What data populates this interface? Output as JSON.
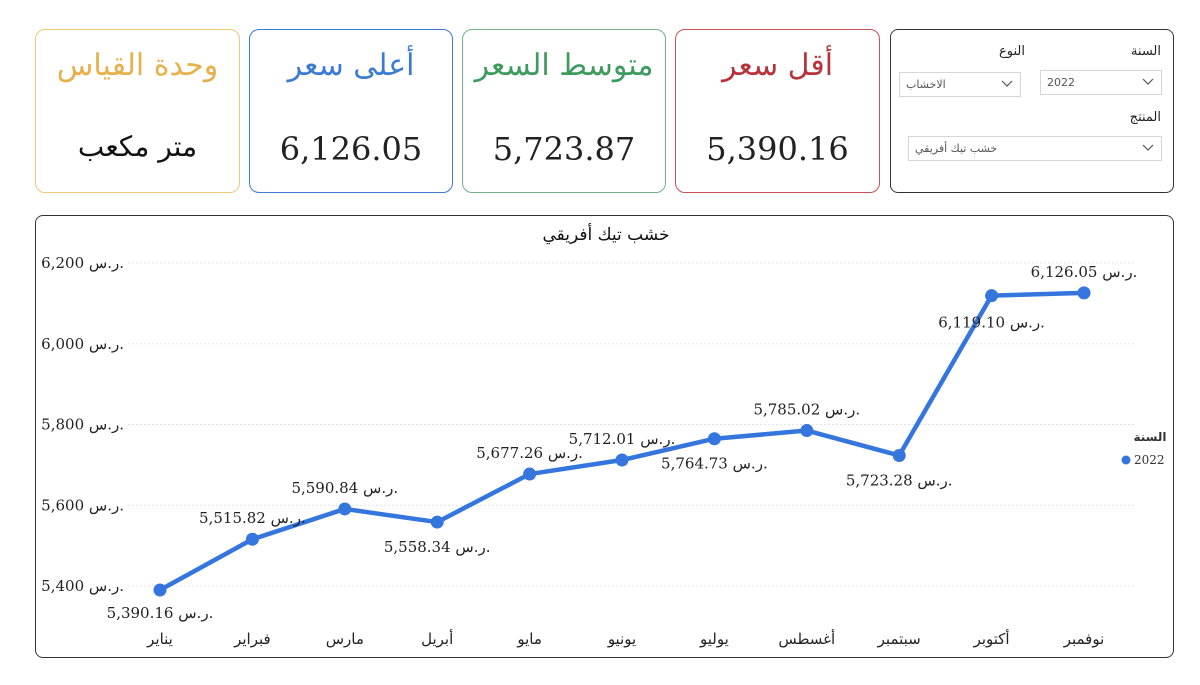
{
  "cards": {
    "unit": {
      "title": "وحدة القياس",
      "value": "متر مكعب",
      "color": "#e8b04a"
    },
    "max": {
      "title": "أعلى سعر",
      "value": "6,126.05",
      "color": "#3b7bd4"
    },
    "avg": {
      "title": "متوسط السعر",
      "value": "5,723.87",
      "color": "#3f9a5e"
    },
    "min": {
      "title": "أقل سعر",
      "value": "5,390.16",
      "color": "#b8323a"
    }
  },
  "filters": {
    "year_label": "السنة",
    "year_value": "2022",
    "type_label": "النوع",
    "type_value": "الاخشاب",
    "product_label": "المنتج",
    "product_value": "خشب تيك أفريقي"
  },
  "chart_data": {
    "type": "line",
    "title": "خشب تيك أفريقي",
    "categories": [
      "يناير",
      "فبراير",
      "مارس",
      "أبريل",
      "مايو",
      "يونيو",
      "يوليو",
      "أغسطس",
      "سبتمبر",
      "أكتوبر",
      "نوفمبر"
    ],
    "series": [
      {
        "name": "2022",
        "values": [
          5390.16,
          5515.82,
          5590.84,
          5558.34,
          5677.26,
          5712.01,
          5764.73,
          5785.02,
          5723.28,
          6119.1,
          6126.05
        ],
        "color": "#3575de"
      }
    ],
    "data_labels": [
      "5,390.16 ر.س.",
      "5,515.82 ر.س.",
      "5,590.84 ر.س.",
      "5,558.34 ر.س.",
      "5,677.26 ر.س.",
      "5,712.01 ر.س.",
      "5,764.73 ر.س.",
      "5,785.02 ر.س.",
      "5,723.28 ر.س.",
      "6,119.10 ر.س.",
      "6,126.05 ر.س."
    ],
    "yticks": [
      5400,
      5600,
      5800,
      6000,
      6200
    ],
    "ytick_labels": [
      "5,400 ر.س.",
      "5,600 ر.س.",
      "5,800 ر.س.",
      "6,000 ر.س.",
      "6,200 ر.س."
    ],
    "ylim": [
      5400,
      6200
    ],
    "grid": true,
    "legend_title": "السنة",
    "legend_position": "right"
  }
}
